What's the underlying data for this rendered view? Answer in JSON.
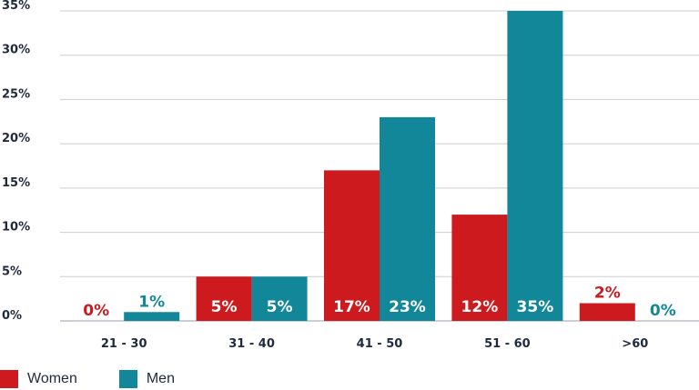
{
  "chart_data": {
    "type": "bar",
    "categories": [
      "21 - 30",
      "31 - 40",
      "41 - 50",
      "51 - 60",
      ">60"
    ],
    "series": [
      {
        "name": "Women",
        "color": "#cc1a1e",
        "values": [
          0,
          5,
          17,
          12,
          2
        ],
        "labels": [
          "0%",
          "5%",
          "17%",
          "12%",
          "2%"
        ]
      },
      {
        "name": "Men",
        "color": "#13879a",
        "values": [
          1,
          5,
          23,
          35,
          0
        ],
        "labels": [
          "1%",
          "5%",
          "23%",
          "35%",
          "0%"
        ]
      }
    ],
    "yticks": [
      "0%",
      "5%",
      "10%",
      "15%",
      "20%",
      "25%",
      "30%",
      "35%"
    ],
    "ylim": [
      0,
      35
    ],
    "grid": true,
    "legend": "bottom-left"
  }
}
